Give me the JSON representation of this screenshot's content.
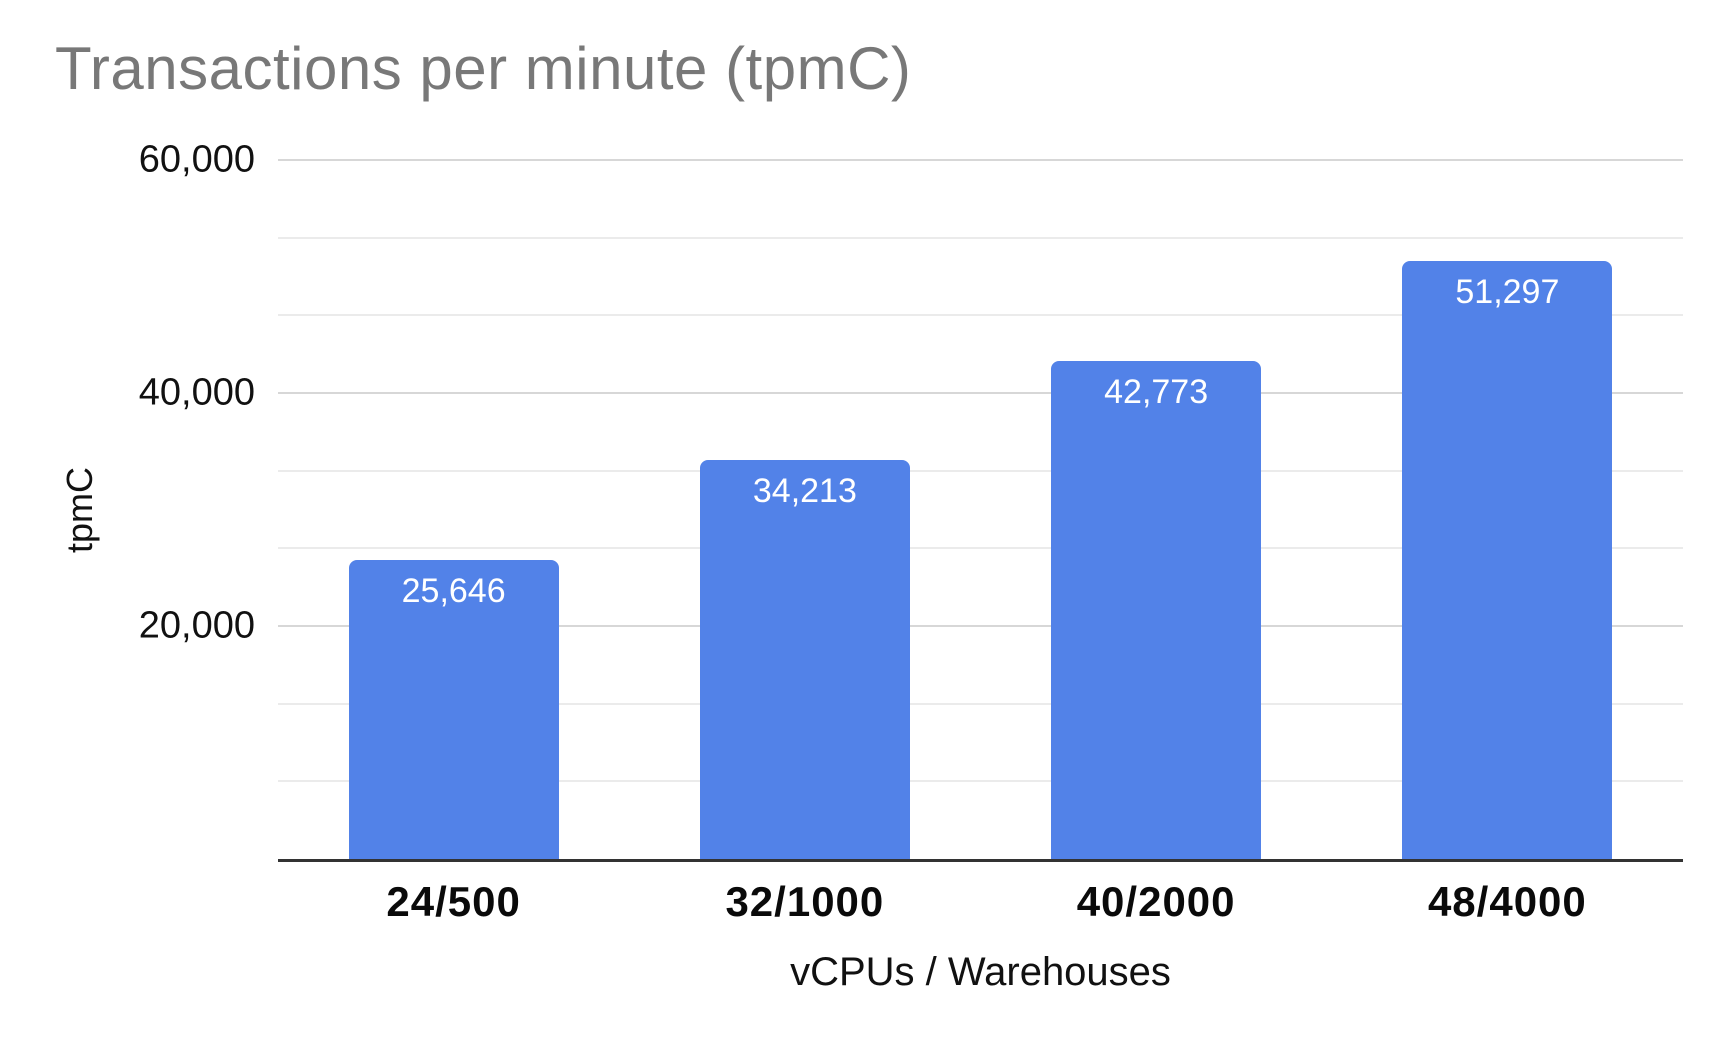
{
  "chart_data": {
    "type": "bar",
    "title": "Transactions per minute (tpmC)",
    "categories": [
      "24/500",
      "32/1000",
      "40/2000",
      "48/4000"
    ],
    "values": [
      25646,
      34213,
      42773,
      51297
    ],
    "value_labels": [
      "25,646",
      "34,213",
      "42,773",
      "51,297"
    ],
    "xlabel": "vCPUs / Warehouses",
    "ylabel": "tpmC",
    "ylim": [
      0,
      60000
    ],
    "y_major_step": 20000,
    "y_minor_per_major": 2,
    "y_tick_labels_desc": [
      "60,000",
      "40,000",
      "20,000"
    ],
    "grid": true,
    "legend": "none",
    "colors": {
      "bar": "#5282e8",
      "bar_label": "#ffffff",
      "title": "#787878",
      "axis_line": "#333333",
      "major_gridline": "#d7d7d7",
      "minor_gridline": "#ebebeb",
      "tick_label": "#111111"
    }
  }
}
